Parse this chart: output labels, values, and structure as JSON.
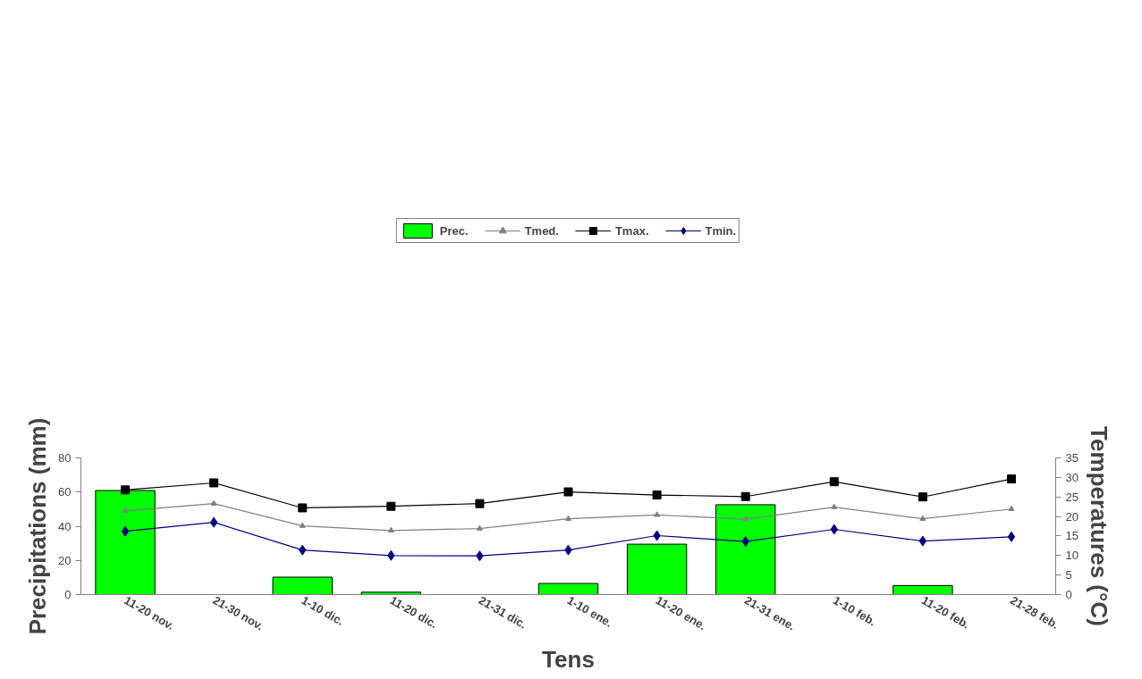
{
  "chart_data": {
    "type": "bar",
    "xlabel": "Tens",
    "ylabel": "Precipitations (mm)",
    "y2label": "Temperatures (°C)",
    "categories": [
      "11-20 nov.",
      "21-30 nov.",
      "1-10 dic.",
      "11-20 dic.",
      "21-31 dic.",
      "1-10 ene.",
      "11-20 ene.",
      "21-31 ene.",
      "1-10 feb.",
      "11-20 feb.",
      "21-28 feb."
    ],
    "ylim": [
      0,
      80
    ],
    "yticks": [
      0,
      20,
      40,
      60,
      80
    ],
    "y2lim": [
      0,
      35
    ],
    "y2ticks": [
      0,
      5,
      10,
      15,
      20,
      25,
      30,
      35
    ],
    "grid": false,
    "legend": "top",
    "series": [
      {
        "name": "Prec.",
        "color": "#00ff00",
        "values": [
          60.9,
          0,
          10.2,
          1.4,
          0,
          6.5,
          29.5,
          52.6,
          0,
          5.3,
          0
        ]
      },
      {
        "name": "Tmed.",
        "type": "line",
        "axis": "y2",
        "marker": "triangle",
        "color": "#808080",
        "values": [
          21.4,
          23.3,
          17.6,
          16.4,
          16.9,
          19.4,
          20.4,
          19.3,
          22.4,
          19.4,
          21.9
        ]
      },
      {
        "name": "Tmax.",
        "type": "line",
        "axis": "y2",
        "marker": "square",
        "color": "#000000",
        "values": [
          26.8,
          28.6,
          22.2,
          22.6,
          23.3,
          26.3,
          25.5,
          25.1,
          28.9,
          25.0,
          29.6
        ]
      },
      {
        "name": "Tmin.",
        "type": "line",
        "axis": "y2",
        "marker": "diamond",
        "color": "#000080",
        "values": [
          16.2,
          18.5,
          11.4,
          10.0,
          9.9,
          11.4,
          15.1,
          13.6,
          16.7,
          13.7,
          14.8
        ]
      }
    ]
  }
}
